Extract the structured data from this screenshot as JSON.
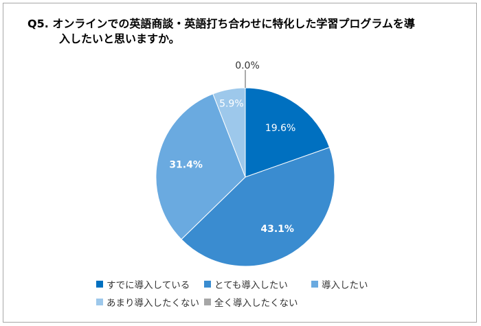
{
  "chart_data": {
    "type": "pie",
    "title": "Q5.  オンラインでの英語商談・英語打ち合わせに特化した学習プログラムを導入したいと思いますか。",
    "title_line1": "Q5.  オンラインでの英語商談・英語打ち合わせに特化した学習プログラムを導",
    "title_line2": "入したいと思いますか。",
    "start_angle": "top",
    "direction": "clockwise",
    "legend_position": "bottom",
    "slices": [
      {
        "label": "すでに導入している",
        "value": 19.6,
        "display": "19.6%",
        "color": "#0070C0",
        "bold": false
      },
      {
        "label": "とても導入したい",
        "value": 43.1,
        "display": "43.1%",
        "color": "#3A8CD0",
        "bold": true
      },
      {
        "label": "導入したい",
        "value": 31.4,
        "display": "31.4%",
        "color": "#6AAAE0",
        "bold": true
      },
      {
        "label": "あまり導入したくない",
        "value": 5.9,
        "display": "5.9%",
        "color": "#9DC8EB",
        "bold": false
      },
      {
        "label": "全く導入したくない",
        "value": 0.0,
        "display": "0.0%",
        "color": "#A6A6A6",
        "bold": false
      }
    ]
  }
}
